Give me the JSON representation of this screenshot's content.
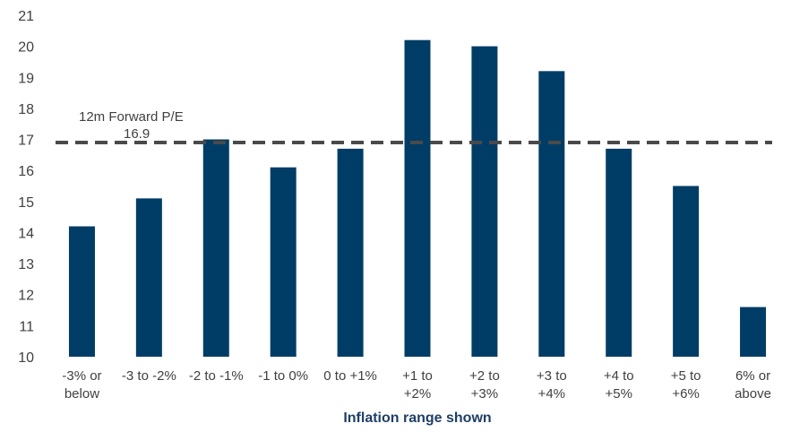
{
  "chart_data": {
    "type": "bar",
    "categories": [
      [
        "-3% or",
        "below"
      ],
      [
        "-3 to -2%"
      ],
      [
        "-2 to -1%"
      ],
      [
        "-1 to 0%"
      ],
      [
        "0 to +1%"
      ],
      [
        "+1 to",
        "+2%"
      ],
      [
        "+2 to",
        "+3%"
      ],
      [
        "+3 to",
        "+4%"
      ],
      [
        "+4 to",
        "+5%"
      ],
      [
        "+5 to",
        "+6%"
      ],
      [
        "6% or",
        "above"
      ]
    ],
    "values": [
      14.2,
      15.1,
      17.0,
      16.1,
      16.7,
      20.2,
      20.0,
      19.2,
      16.7,
      15.5,
      11.6
    ],
    "ylim": [
      10,
      21
    ],
    "yticks": [
      10,
      11,
      12,
      13,
      14,
      15,
      16,
      17,
      18,
      19,
      20,
      21
    ],
    "xlabel": "Inflation range shown",
    "ylabel": "",
    "reference_line": {
      "value": 16.9,
      "label": "12m Forward P/E",
      "value_label": "16.9",
      "color": "#4a4a4a",
      "style": "dashed"
    },
    "bar_color": "#003d66",
    "grid": false,
    "legend": false
  }
}
